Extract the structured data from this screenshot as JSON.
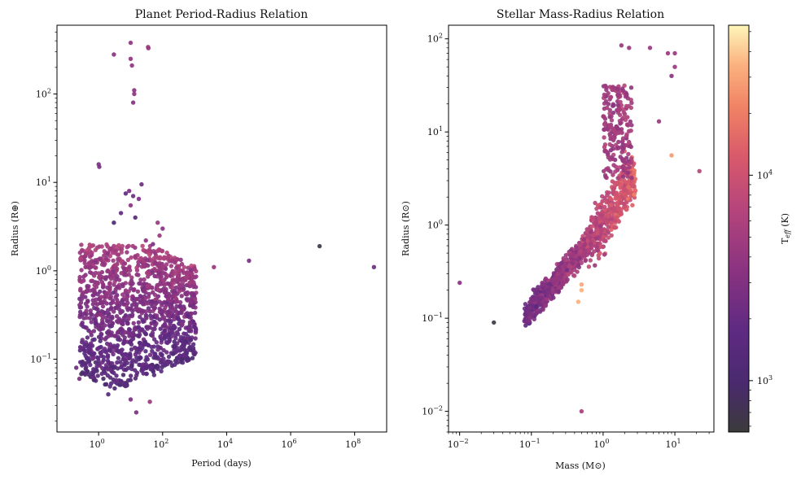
{
  "chart_data": [
    {
      "type": "scatter",
      "title": "Planet Period-Radius Relation",
      "xlabel": "Period (days)",
      "ylabel": "Radius (R⊕)",
      "xscale": "log",
      "yscale": "log",
      "xlim": [
        0.05,
        1000000000.0
      ],
      "ylim": [
        0.015,
        600
      ],
      "xticks": [
        {
          "value": 1,
          "base": "10",
          "exp": "0"
        },
        {
          "value": 100,
          "base": "10",
          "exp": "2"
        },
        {
          "value": 10000,
          "base": "10",
          "exp": "4"
        },
        {
          "value": 1000000,
          "base": "10",
          "exp": "6"
        },
        {
          "value": 100000000,
          "base": "10",
          "exp": "8"
        }
      ],
      "yticks": [
        {
          "value": 0.1,
          "base": "10",
          "exp": "−1"
        },
        {
          "value": 1,
          "base": "10",
          "exp": "0"
        },
        {
          "value": 10,
          "base": "10",
          "exp": "1"
        },
        {
          "value": 100,
          "base": "10",
          "exp": "2"
        }
      ],
      "color_by": "Teff (K)",
      "point_groups": [
        {
          "x_log_range": [
            -0.6,
            3.05
          ],
          "y_log_range": [
            -1.35,
            0.3
          ],
          "color_range": [
            0.25,
            0.5
          ],
          "count": 1400
        }
      ],
      "points": [
        {
          "x": 10,
          "y": 380,
          "c": 0.42
        },
        {
          "x": 35,
          "y": 340,
          "c": 0.45
        },
        {
          "x": 36,
          "y": 330,
          "c": 0.45
        },
        {
          "x": 3,
          "y": 280,
          "c": 0.4
        },
        {
          "x": 10,
          "y": 250,
          "c": 0.42
        },
        {
          "x": 11,
          "y": 210,
          "c": 0.42
        },
        {
          "x": 13,
          "y": 110,
          "c": 0.4
        },
        {
          "x": 13,
          "y": 100,
          "c": 0.4
        },
        {
          "x": 12,
          "y": 80,
          "c": 0.38
        },
        {
          "x": 1,
          "y": 16,
          "c": 0.35
        },
        {
          "x": 1.05,
          "y": 15,
          "c": 0.35
        },
        {
          "x": 22,
          "y": 9.5,
          "c": 0.3
        },
        {
          "x": 9,
          "y": 8,
          "c": 0.35
        },
        {
          "x": 7,
          "y": 7.5,
          "c": 0.25
        },
        {
          "x": 12,
          "y": 7,
          "c": 0.3
        },
        {
          "x": 18,
          "y": 6.5,
          "c": 0.35
        },
        {
          "x": 10,
          "y": 5.5,
          "c": 0.4
        },
        {
          "x": 5,
          "y": 4.5,
          "c": 0.25
        },
        {
          "x": 14,
          "y": 4,
          "c": 0.2
        },
        {
          "x": 70,
          "y": 3.5,
          "c": 0.45
        },
        {
          "x": 100,
          "y": 3,
          "c": 0.4
        },
        {
          "x": 3,
          "y": 3.5,
          "c": 0.15
        },
        {
          "x": 80,
          "y": 2.5,
          "c": 0.45
        },
        {
          "x": 30,
          "y": 2.2,
          "c": 0.4
        },
        {
          "x": 50,
          "y": 2,
          "c": 0.35
        },
        {
          "x": 8000000,
          "y": 1.9,
          "c": 0.02
        },
        {
          "x": 50000,
          "y": 1.3,
          "c": 0.35
        },
        {
          "x": 400000000,
          "y": 1.1,
          "c": 0.3
        },
        {
          "x": 4000,
          "y": 1.1,
          "c": 0.45
        },
        {
          "x": 1000,
          "y": 1.05,
          "c": 0.45
        },
        {
          "x": 900,
          "y": 0.85,
          "c": 0.45
        },
        {
          "x": 0.2,
          "y": 0.08,
          "c": 0.3
        },
        {
          "x": 0.25,
          "y": 0.06,
          "c": 0.35
        },
        {
          "x": 2,
          "y": 0.04,
          "c": 0.2
        },
        {
          "x": 10,
          "y": 0.035,
          "c": 0.35
        },
        {
          "x": 40,
          "y": 0.033,
          "c": 0.45
        },
        {
          "x": 15,
          "y": 0.025,
          "c": 0.35
        }
      ]
    },
    {
      "type": "scatter",
      "title": "Stellar Mass-Radius Relation",
      "xlabel": "Mass (M⊙)",
      "ylabel": "Radius (R⊙)",
      "xscale": "log",
      "yscale": "log",
      "xlim": [
        0.007,
        35
      ],
      "ylim": [
        0.006,
        140
      ],
      "xticks": [
        {
          "value": 0.01,
          "base": "10",
          "exp": "−2"
        },
        {
          "value": 0.1,
          "base": "10",
          "exp": "−1"
        },
        {
          "value": 1,
          "base": "10",
          "exp": "0"
        },
        {
          "value": 10,
          "base": "10",
          "exp": "1"
        }
      ],
      "yticks": [
        {
          "value": 0.01,
          "base": "10",
          "exp": "−2"
        },
        {
          "value": 0.1,
          "base": "10",
          "exp": "−1"
        },
        {
          "value": 1,
          "base": "10",
          "exp": "0"
        },
        {
          "value": 10,
          "base": "10",
          "exp": "1"
        },
        {
          "value": 100,
          "base": "10",
          "exp": "2"
        }
      ],
      "color_by": "Teff (K)",
      "point_groups": [
        {
          "x_log_range": [
            -1.1,
            0.45
          ],
          "relation": "main-sequence",
          "color_range": [
            0.3,
            0.7
          ],
          "count": 1100
        },
        {
          "x_log_range": [
            0.0,
            0.4
          ],
          "y_log_range": [
            0.5,
            1.5
          ],
          "color_range": [
            0.4,
            0.55
          ],
          "count": 220
        }
      ],
      "points": [
        {
          "x": 0.01,
          "y": 0.24,
          "c": 0.4
        },
        {
          "x": 0.03,
          "y": 0.09,
          "c": 0.02
        },
        {
          "x": 0.5,
          "y": 0.01,
          "c": 0.5
        },
        {
          "x": 0.45,
          "y": 0.15,
          "c": 0.9
        },
        {
          "x": 0.5,
          "y": 0.2,
          "c": 0.9
        },
        {
          "x": 0.5,
          "y": 0.23,
          "c": 0.88
        },
        {
          "x": 9,
          "y": 5.6,
          "c": 0.85
        },
        {
          "x": 22,
          "y": 3.8,
          "c": 0.55
        },
        {
          "x": 8,
          "y": 70,
          "c": 0.45
        },
        {
          "x": 10,
          "y": 70,
          "c": 0.45
        },
        {
          "x": 4.5,
          "y": 80,
          "c": 0.45
        },
        {
          "x": 1.8,
          "y": 85,
          "c": 0.45
        },
        {
          "x": 2.3,
          "y": 80,
          "c": 0.45
        },
        {
          "x": 10,
          "y": 50,
          "c": 0.45
        },
        {
          "x": 9,
          "y": 40,
          "c": 0.4
        },
        {
          "x": 6,
          "y": 13,
          "c": 0.45
        }
      ]
    }
  ],
  "colorbar": {
    "label_main": "T",
    "label_sub": "eff",
    "label_unit": " (K)",
    "log_range": [
      2.75,
      4.73
    ],
    "ticks": [
      {
        "value": 1000,
        "base": "10",
        "exp": "3"
      },
      {
        "value": 10000,
        "base": "10",
        "exp": "4"
      }
    ]
  }
}
